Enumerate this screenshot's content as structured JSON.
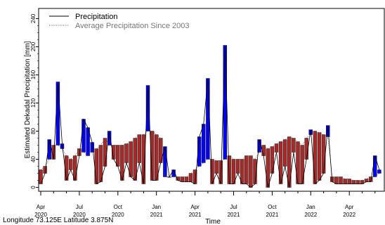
{
  "chart_data": {
    "type": "line",
    "ylabel": "Estimated Dekadal Precipitation [mm]",
    "xlabel": "Time",
    "ylim": [
      0,
      250
    ],
    "yticks": [
      0,
      40,
      80,
      120,
      160,
      200,
      240
    ],
    "xticks": [
      {
        "month": "Apr",
        "year": "2020",
        "dekad": 0
      },
      {
        "month": "Jul",
        "year": "2020",
        "dekad": 9
      },
      {
        "month": "Oct",
        "year": "2020",
        "dekad": 18
      },
      {
        "month": "Jan",
        "year": "2021",
        "dekad": 27
      },
      {
        "month": "Apr",
        "year": "2021",
        "dekad": 36
      },
      {
        "month": "Jul",
        "year": "2021",
        "dekad": 45
      },
      {
        "month": "Oct",
        "year": "2021",
        "dekad": 54
      },
      {
        "month": "Jan",
        "year": "2022",
        "dekad": 63
      },
      {
        "month": "Apr",
        "year": "2022",
        "dekad": 72
      }
    ],
    "legend_position": "top-left",
    "series": [
      {
        "name": "Precipitation",
        "style": "solid",
        "values": [
          5,
          20,
          68,
          40,
          150,
          62,
          10,
          25,
          10,
          45,
          97,
          85,
          64,
          5,
          8,
          30,
          80,
          40,
          30,
          10,
          35,
          15,
          10,
          35,
          5,
          145,
          10,
          10,
          35,
          58,
          15,
          25,
          10,
          8,
          8,
          8,
          5,
          72,
          90,
          155,
          5,
          20,
          5,
          202,
          5,
          5,
          20,
          5,
          5,
          0,
          5,
          68,
          45,
          0,
          20,
          50,
          5,
          30,
          0,
          50,
          5,
          5,
          40,
          82,
          5,
          10,
          20,
          88,
          8,
          5,
          5,
          5,
          5,
          5,
          5,
          5,
          8,
          8,
          45,
          25
        ]
      },
      {
        "name": "Average Precipitation Since 2003",
        "style": "dotted",
        "values": [
          25,
          30,
          40,
          60,
          60,
          55,
          45,
          40,
          45,
          55,
          50,
          45,
          50,
          55,
          60,
          70,
          60,
          60,
          60,
          60,
          62,
          65,
          70,
          75,
          75,
          80,
          80,
          75,
          70,
          15,
          15,
          15,
          15,
          15,
          15,
          20,
          25,
          30,
          35,
          40,
          40,
          38,
          38,
          40,
          45,
          40,
          40,
          40,
          45,
          45,
          40,
          50,
          60,
          55,
          58,
          62,
          65,
          68,
          72,
          70,
          65,
          60,
          70,
          75,
          80,
          78,
          75,
          72,
          15,
          15,
          15,
          12,
          12,
          10,
          10,
          10,
          12,
          15,
          15,
          20
        ]
      }
    ],
    "colors": {
      "above_average": "#0000ee",
      "below_average": "#a52a2a"
    },
    "footer_text": "Longitude 73.125E Latitude 3.875N"
  }
}
